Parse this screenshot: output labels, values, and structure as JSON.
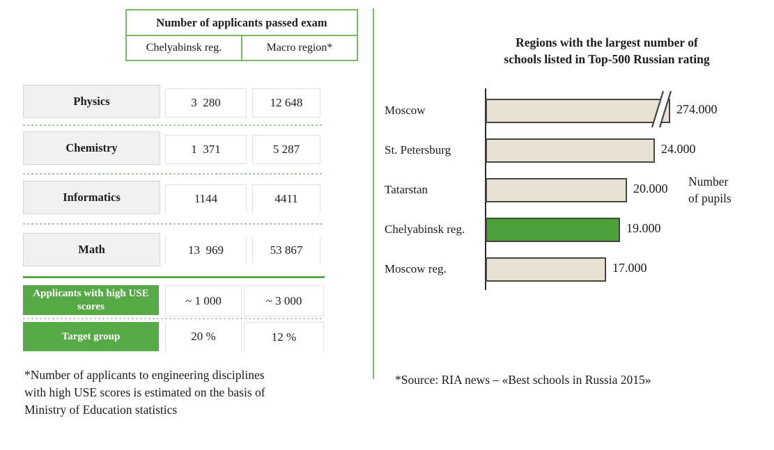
{
  "colors": {
    "table_green": "#57a847",
    "header_border_green": "#76ba63",
    "divider_green": "#79bb64",
    "bar_beige": "#e7e2d4",
    "bar_green": "#4ca13c",
    "bar_border": "#45453f"
  },
  "chart_data": [
    {
      "type": "bar",
      "orientation": "horizontal",
      "title": "Regions with the largest number of\nschools listed in Top-500 Russian rating",
      "categories": [
        "Moscow",
        "St. Petersburg",
        "Tatarstan",
        "Chelyabinsk reg.",
        "Moscow reg."
      ],
      "values": [
        274000,
        24000,
        20000,
        19000,
        17000
      ],
      "value_labels": [
        "274.000",
        "24.000",
        "20.000",
        "19.000",
        "17.000"
      ],
      "axis_label": "Number\nof pupils",
      "bar_color": "#e7e2d4",
      "highlight_category": "Chelyabinsk reg.",
      "highlight_color": "#4ca13c",
      "broken_axis_category": "Moscow",
      "legend_position": "none",
      "grid": false,
      "source": "*Source: RIA news – «Best schools in Russia 2015»"
    },
    {
      "type": "table",
      "title": "Number of applicants passed exam",
      "columns": [
        "Chelyabinsk reg.",
        "Macro region*"
      ],
      "rows": [
        {
          "subject": "Physics",
          "chelyabinsk": "3  280",
          "macro": "12 648"
        },
        {
          "subject": "Chemistry",
          "chelyabinsk": "1  371",
          "macro": "5 287"
        },
        {
          "subject": "Informatics",
          "chelyabinsk": "1144",
          "macro": "4411"
        },
        {
          "subject": "Math",
          "chelyabinsk": "13  969",
          "macro": "53 867"
        }
      ],
      "summary_rows": [
        {
          "label": "Applicants with high USE scores",
          "chelyabinsk": "~ 1 000",
          "macro": "~ 3 000"
        },
        {
          "label": "Target group",
          "chelyabinsk": "20 %",
          "macro": "12 %"
        }
      ],
      "footnote": "*Number of applicants to engineering disciplines\nwith high USE scores is estimated on the basis of\nMinistry of Education statistics"
    }
  ]
}
